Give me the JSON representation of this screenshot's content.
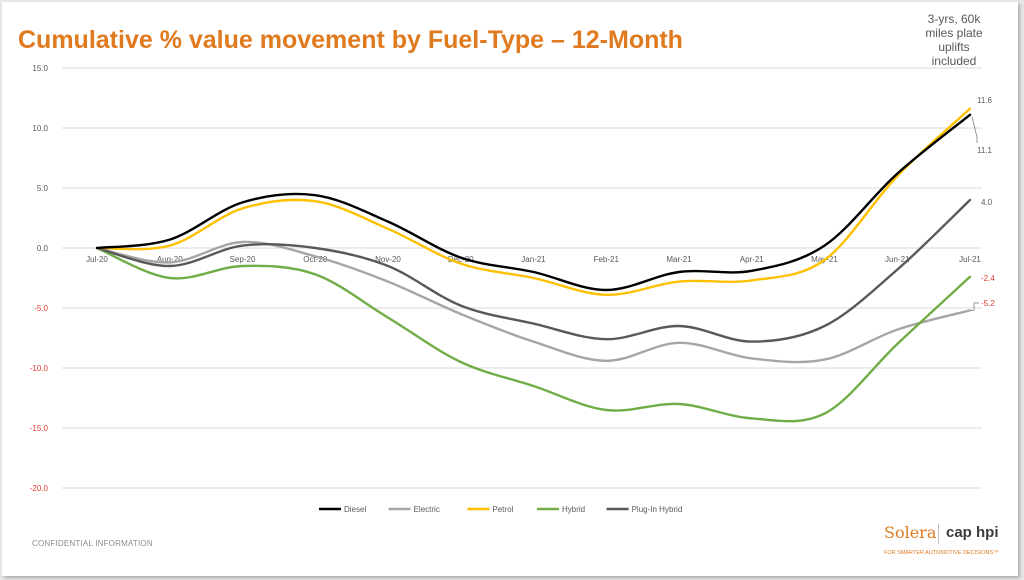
{
  "title": "Cumulative % value movement by Fuel-Type – 12-Month",
  "note": [
    "3-yrs, 60k",
    "miles plate",
    "uplifts",
    "included"
  ],
  "footer": "CONFIDENTIAL INFORMATION",
  "logo": {
    "brand": "Solera",
    "partner": "cap hpi",
    "tagline": "FOR SMARTER AUTOMOTIVE DECISIONS™"
  },
  "colors": {
    "title": "#e07a1f",
    "negative_label": "#e03c31",
    "axis_text": "#595959",
    "grid": "#d9d9d9"
  },
  "chart_data": {
    "type": "line",
    "categories": [
      "Jul-20",
      "Aug-20",
      "Sep-20",
      "Oct-20",
      "Nov-20",
      "Dec-20",
      "Jan-21",
      "Feb-21",
      "Mar-21",
      "Apr-21",
      "May-21",
      "Jun-21",
      "Jul-21"
    ],
    "ylim": [
      -20,
      15
    ],
    "yticks": [
      "15.0",
      "10.0",
      "5.0",
      "0.0",
      "-5.0",
      "-10.0",
      "-15.0",
      "-20.0"
    ],
    "grid": true,
    "legend_position": "bottom",
    "series": [
      {
        "name": "Diesel",
        "color": "#000000",
        "values": [
          0,
          0.7,
          3.8,
          4.4,
          2.2,
          -0.8,
          -2.0,
          -3.5,
          -2.0,
          -1.9,
          0.2,
          6.2,
          11.1
        ]
      },
      {
        "name": "Electric",
        "color": "#a6a6a6",
        "values": [
          0,
          -1.2,
          0.5,
          -0.7,
          -2.8,
          -5.5,
          -7.8,
          -9.4,
          -7.9,
          -9.2,
          -9.3,
          -6.8,
          -5.2
        ]
      },
      {
        "name": "Petrol",
        "color": "#ffc000",
        "values": [
          0,
          0.2,
          3.3,
          3.9,
          1.6,
          -1.3,
          -2.5,
          -3.9,
          -2.8,
          -2.7,
          -1.0,
          6.0,
          11.6
        ]
      },
      {
        "name": "Hybrid",
        "color": "#70ad47",
        "values": [
          0,
          -2.5,
          -1.5,
          -2.2,
          -5.8,
          -9.5,
          -11.5,
          -13.5,
          -13.0,
          -14.2,
          -13.8,
          -8.0,
          -2.4
        ]
      },
      {
        "name": "Plug-In Hybrid",
        "color": "#595959",
        "values": [
          0,
          -1.5,
          0.2,
          0,
          -1.5,
          -4.8,
          -6.3,
          -7.6,
          -6.5,
          -7.8,
          -6.5,
          -1.8,
          4.0
        ]
      }
    ],
    "end_labels": [
      {
        "series": "Petrol",
        "text": "11.6",
        "color": "#595959"
      },
      {
        "series": "Diesel",
        "text": "11.1",
        "color": "#595959"
      },
      {
        "series": "Plug-In Hybrid",
        "text": "4.0",
        "color": "#595959"
      },
      {
        "series": "Hybrid",
        "text": "-2.4",
        "color": "#e03c31"
      },
      {
        "series": "Electric",
        "text": "-5.2",
        "color": "#e03c31"
      }
    ]
  }
}
